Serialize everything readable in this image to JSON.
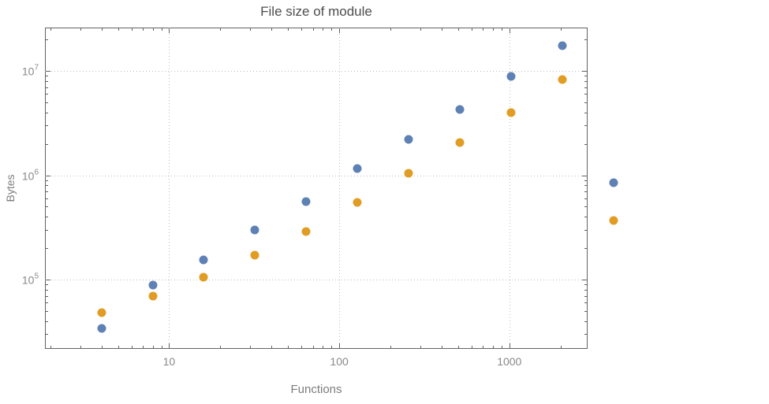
{
  "chart": {
    "title": "File size of module",
    "xlabel": "Functions",
    "ylabel": "Bytes"
  },
  "chart_data": {
    "type": "scatter",
    "title": "File size of module",
    "xlabel": "Functions",
    "ylabel": "Bytes",
    "x_scale": "log",
    "y_scale": "log",
    "grid": "dotted, major decades only",
    "legend": "none",
    "frame": true,
    "x": [
      4,
      8,
      16,
      32,
      64,
      128,
      256,
      512,
      1024,
      2048,
      4096
    ],
    "series": [
      {
        "name": "series-blue",
        "color": "#5E81B5",
        "values": [
          34000,
          88000,
          155000,
          300000,
          560000,
          1150000,
          2200000,
          4300000,
          8800000,
          17500000,
          850000
        ]
      },
      {
        "name": "series-orange",
        "color": "#E19C24",
        "values": [
          48000,
          70000,
          105000,
          170000,
          290000,
          550000,
          1050000,
          2050000,
          4000000,
          8200000,
          370000
        ]
      }
    ],
    "x_axis": {
      "log_min": 0.27,
      "log_max": 3.46,
      "ticks": [
        {
          "label": "10",
          "value": 10
        },
        {
          "label": "100",
          "value": 100
        },
        {
          "label": "1000",
          "value": 1000
        }
      ]
    },
    "y_axis": {
      "log_min": 4.336,
      "log_max": 7.415,
      "ticks": [
        {
          "base": "10",
          "exp": "5",
          "value": 100000
        },
        {
          "base": "10",
          "exp": "6",
          "value": 1000000
        },
        {
          "base": "10",
          "exp": "7",
          "value": 10000000
        }
      ]
    }
  },
  "style": {
    "background": "#ffffff",
    "frame_color": "#626262",
    "grid_color": "#bcbcbc",
    "title_color": "#4d4d4d",
    "tick_label_color": "#898989",
    "axis_label_color": "#7c7c7c",
    "point_blue": "#5E81B5",
    "point_orange": "#E19C24"
  }
}
